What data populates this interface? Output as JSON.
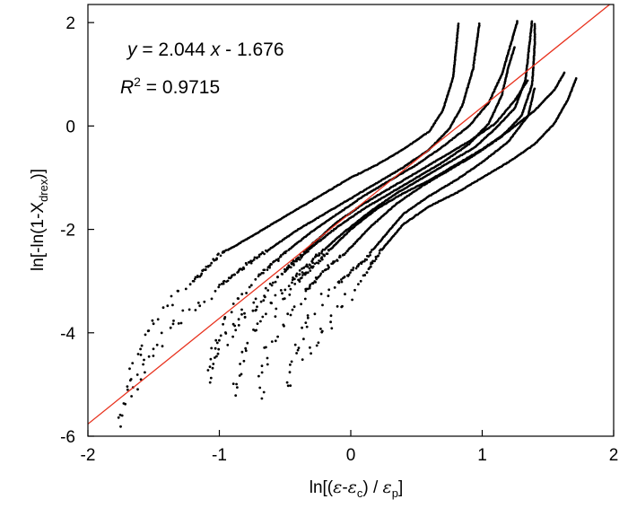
{
  "chart_data": {
    "type": "scatter",
    "title": "",
    "xlabel": "ln[(ε-εc)/εp]",
    "ylabel": "ln[-ln(1-Xdrex)]",
    "xlim": [
      -2,
      2
    ],
    "ylim": [
      -6,
      2.35
    ],
    "x_ticks": [
      "-2",
      "-1",
      "0",
      "1",
      "2"
    ],
    "y_ticks": [
      "-6",
      "-4",
      "-2",
      "0",
      "2"
    ],
    "grid": false,
    "annotations": {
      "equation": "y = 2.044 x - 1.676",
      "r_squared": "R2 = 0.9715",
      "r_squared_value": "0.9715"
    },
    "fit_line": {
      "slope": 2.044,
      "intercept": -1.676,
      "color": "#e8321e"
    },
    "marker_color": "#000000",
    "series": [
      {
        "points": [
          [
            -1.75,
            -5.8
          ],
          [
            -1.7,
            -5.1
          ],
          [
            -1.6,
            -4.3
          ],
          [
            -1.5,
            -3.8
          ],
          [
            -1.4,
            -3.5
          ],
          [
            -1.2,
            -3.0
          ],
          [
            -1.0,
            -2.5
          ],
          [
            -0.8,
            -2.2
          ],
          [
            -0.6,
            -1.9
          ],
          [
            -0.4,
            -1.6
          ],
          [
            -0.2,
            -1.3
          ],
          [
            0.0,
            -1.0
          ],
          [
            0.2,
            -0.75
          ],
          [
            0.4,
            -0.45
          ],
          [
            0.6,
            -0.1
          ],
          [
            0.7,
            0.3
          ],
          [
            0.78,
            0.95
          ],
          [
            0.82,
            2.0
          ]
        ]
      },
      {
        "points": [
          [
            -1.65,
            -5.2
          ],
          [
            -1.55,
            -4.6
          ],
          [
            -1.4,
            -4.0
          ],
          [
            -1.2,
            -3.5
          ],
          [
            -1.0,
            -3.1
          ],
          [
            -0.8,
            -2.7
          ],
          [
            -0.6,
            -2.35
          ],
          [
            -0.4,
            -2.0
          ],
          [
            -0.2,
            -1.7
          ],
          [
            0.0,
            -1.4
          ],
          [
            0.2,
            -1.1
          ],
          [
            0.4,
            -0.8
          ],
          [
            0.6,
            -0.45
          ],
          [
            0.75,
            -0.05
          ],
          [
            0.85,
            0.4
          ],
          [
            0.93,
            1.1
          ],
          [
            0.98,
            2.0
          ]
        ]
      },
      {
        "points": [
          [
            -1.1,
            -5.0
          ],
          [
            -1.0,
            -4.1
          ],
          [
            -0.9,
            -3.5
          ],
          [
            -0.7,
            -2.9
          ],
          [
            -0.5,
            -2.45
          ],
          [
            -0.3,
            -2.05
          ],
          [
            -0.1,
            -1.7
          ],
          [
            0.1,
            -1.35
          ],
          [
            0.3,
            -1.05
          ],
          [
            0.5,
            -0.75
          ],
          [
            0.7,
            -0.4
          ],
          [
            0.9,
            0.0
          ],
          [
            1.05,
            0.45
          ],
          [
            1.15,
            1.0
          ],
          [
            1.22,
            1.6
          ],
          [
            1.27,
            2.05
          ]
        ]
      },
      {
        "points": [
          [
            -1.08,
            -4.7
          ],
          [
            -0.9,
            -3.9
          ],
          [
            -0.7,
            -3.3
          ],
          [
            -0.5,
            -2.8
          ],
          [
            -0.3,
            -2.35
          ],
          [
            -0.1,
            -1.95
          ],
          [
            0.1,
            -1.6
          ],
          [
            0.3,
            -1.3
          ],
          [
            0.5,
            -1.0
          ],
          [
            0.7,
            -0.7
          ],
          [
            0.9,
            -0.35
          ],
          [
            1.05,
            0.05
          ],
          [
            1.15,
            0.6
          ],
          [
            1.2,
            1.15
          ],
          [
            1.25,
            1.55
          ]
        ]
      },
      {
        "points": [
          [
            -0.9,
            -5.2
          ],
          [
            -0.8,
            -4.3
          ],
          [
            -0.65,
            -3.6
          ],
          [
            -0.45,
            -3.0
          ],
          [
            -0.25,
            -2.5
          ],
          [
            -0.05,
            -2.05
          ],
          [
            0.15,
            -1.65
          ],
          [
            0.35,
            -1.3
          ],
          [
            0.55,
            -1.0
          ],
          [
            0.75,
            -0.7
          ],
          [
            0.95,
            -0.4
          ],
          [
            1.1,
            -0.05
          ],
          [
            1.25,
            0.35
          ],
          [
            1.33,
            0.9
          ],
          [
            1.38,
            2.05
          ]
        ]
      },
      {
        "points": [
          [
            -0.7,
            -5.2
          ],
          [
            -0.62,
            -4.3
          ],
          [
            -0.5,
            -3.7
          ],
          [
            -0.35,
            -3.2
          ],
          [
            -0.2,
            -2.8
          ],
          [
            0.0,
            -2.35
          ],
          [
            0.15,
            -1.95
          ],
          [
            0.35,
            -1.5
          ],
          [
            0.55,
            -1.15
          ],
          [
            0.75,
            -0.85
          ],
          [
            0.95,
            -0.55
          ],
          [
            1.15,
            -0.2
          ],
          [
            1.3,
            0.2
          ],
          [
            1.38,
            0.8
          ],
          [
            1.4,
            1.6
          ],
          [
            1.4,
            2.0
          ]
        ]
      },
      {
        "points": [
          [
            -0.5,
            -5.1
          ],
          [
            -0.4,
            -4.2
          ],
          [
            -0.3,
            -3.6
          ],
          [
            -0.1,
            -3.05
          ],
          [
            0.1,
            -2.6
          ],
          [
            0.25,
            -2.15
          ],
          [
            0.4,
            -1.7
          ],
          [
            0.6,
            -1.35
          ],
          [
            0.8,
            -1.05
          ],
          [
            1.0,
            -0.7
          ],
          [
            1.2,
            -0.3
          ],
          [
            1.35,
            0.2
          ],
          [
            1.4,
            0.75
          ]
        ]
      },
      {
        "points": [
          [
            -0.35,
            -4.5
          ],
          [
            -0.3,
            -4.3
          ],
          [
            -0.2,
            -3.9
          ],
          [
            -0.05,
            -3.45
          ],
          [
            0.1,
            -2.9
          ],
          [
            0.25,
            -2.35
          ],
          [
            0.4,
            -1.9
          ],
          [
            0.6,
            -1.55
          ],
          [
            0.8,
            -1.3
          ],
          [
            1.0,
            -1.0
          ],
          [
            1.2,
            -0.7
          ],
          [
            1.4,
            -0.35
          ],
          [
            1.55,
            0.05
          ],
          [
            1.65,
            0.5
          ],
          [
            1.72,
            0.95
          ]
        ]
      },
      {
        "points": [
          [
            -0.9,
            -4.0
          ],
          [
            -0.7,
            -3.4
          ],
          [
            -0.5,
            -2.8
          ],
          [
            -0.3,
            -2.3
          ],
          [
            -0.1,
            -1.85
          ],
          [
            0.1,
            -1.5
          ],
          [
            0.3,
            -1.2
          ],
          [
            0.5,
            -0.9
          ],
          [
            0.7,
            -0.6
          ],
          [
            0.9,
            -0.3
          ],
          [
            1.1,
            0.05
          ],
          [
            1.25,
            0.5
          ],
          [
            1.35,
            0.9
          ]
        ]
      },
      {
        "points": [
          [
            -0.6,
            -3.6
          ],
          [
            -0.4,
            -3.0
          ],
          [
            -0.2,
            -2.5
          ],
          [
            0.0,
            -2.0
          ],
          [
            0.2,
            -1.6
          ],
          [
            0.4,
            -1.3
          ],
          [
            0.6,
            -1.05
          ],
          [
            0.8,
            -0.75
          ],
          [
            1.0,
            -0.45
          ],
          [
            1.2,
            -0.1
          ],
          [
            1.4,
            0.3
          ],
          [
            1.55,
            0.7
          ],
          [
            1.63,
            1.05
          ]
        ]
      }
    ]
  }
}
